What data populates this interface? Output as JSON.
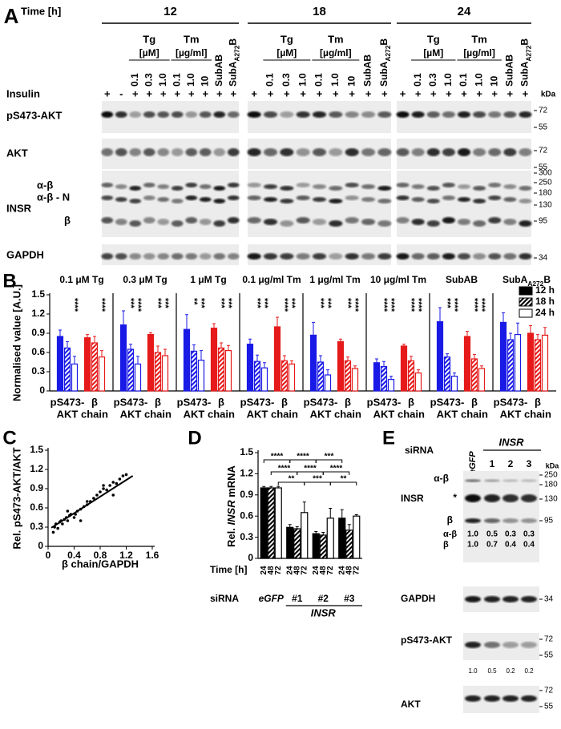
{
  "panel_a": {
    "label": "A",
    "time_label": "Time [h]",
    "insulin_label": "Insulin",
    "kda": "kDa",
    "tg_label": "Tg",
    "tg_unit": "[µM]",
    "tm_label": "Tm",
    "tm_unit": "[µg/ml]",
    "subab": "SubAB",
    "suba272b": [
      "SubA",
      "A272",
      "B"
    ],
    "blocks": [
      {
        "time": 12,
        "insulin": [
          "+",
          "-",
          "+",
          "+",
          "+",
          "+",
          "+",
          "+",
          "+",
          "+"
        ],
        "conc": [
          "0.1",
          "0.3",
          "1.0",
          "0.1",
          "1.0",
          "10"
        ]
      },
      {
        "time": 18,
        "insulin": [
          "+",
          "+",
          "+",
          "+",
          "+",
          "+",
          "+",
          "+",
          "+"
        ],
        "conc": [
          "0.1",
          "0.3",
          "1.0",
          "0.1",
          "1.0",
          "10"
        ]
      },
      {
        "time": 24,
        "insulin": [
          "+",
          "+",
          "+",
          "+",
          "+",
          "+",
          "+",
          "+",
          "+"
        ],
        "conc": [
          "0.1",
          "0.3",
          "1.0",
          "0.1",
          "1.0",
          "10"
        ]
      }
    ],
    "rows": [
      {
        "name": "pS473-AKT",
        "markers": [
          72,
          55
        ]
      },
      {
        "name": "AKT",
        "markers": [
          72,
          55
        ]
      },
      {
        "name": "INSR",
        "markers": [
          300,
          250,
          180,
          130,
          95
        ],
        "bands": [
          "α-β",
          "α-β - N",
          "β"
        ]
      },
      {
        "name": "GAPDH",
        "markers": [
          34
        ]
      }
    ]
  },
  "chart_data": [
    {
      "type": "bar_panels",
      "label": "B",
      "ylabel": "Normalised value [A.U.]",
      "ylim": [
        0,
        1.5
      ],
      "yticks": [
        0,
        0.3,
        0.6,
        0.9,
        1.2,
        1.5
      ],
      "legend_position": "upper right",
      "series": [
        {
          "name": "12 h",
          "style": "solid"
        },
        {
          "name": "18 h",
          "style": "hatched"
        },
        {
          "name": "24 h",
          "style": "open"
        }
      ],
      "groups": [
        {
          "label": [
            "pS473-",
            "AKT"
          ],
          "color": "#1a1ae6"
        },
        {
          "label": [
            "β",
            "chain"
          ],
          "color": "#e61a1a"
        }
      ],
      "panels": [
        {
          "title": "0.1 μM Tg",
          "values": [
            [
              0.85,
              0.67,
              0.42
            ],
            [
              0.83,
              0.75,
              0.53
            ]
          ],
          "errors": [
            [
              0.1,
              0.1,
              0.12
            ],
            [
              0.05,
              0.1,
              0.1
            ]
          ],
          "stars": [
            [
              null,
              null,
              "****"
            ],
            [
              null,
              null,
              "****"
            ]
          ]
        },
        {
          "title": "0.3 μM Tg",
          "values": [
            [
              1.03,
              0.65,
              0.42
            ],
            [
              0.88,
              0.6,
              0.55
            ]
          ],
          "errors": [
            [
              0.22,
              0.08,
              0.12
            ],
            [
              0.03,
              0.1,
              0.1
            ]
          ],
          "stars": [
            [
              null,
              "***",
              "****"
            ],
            [
              null,
              "***",
              "***"
            ]
          ]
        },
        {
          "title": "1 μM Tg",
          "values": [
            [
              0.96,
              0.62,
              0.48
            ],
            [
              0.98,
              0.67,
              0.63
            ]
          ],
          "errors": [
            [
              0.23,
              0.1,
              0.15
            ],
            [
              0.07,
              0.08,
              0.08
            ]
          ],
          "stars": [
            [
              null,
              "**",
              "***"
            ],
            [
              null,
              "***",
              "***"
            ]
          ]
        },
        {
          "title": "0.1 μg/ml Tm",
          "values": [
            [
              0.73,
              0.46,
              0.36
            ],
            [
              1.0,
              0.47,
              0.42
            ]
          ],
          "errors": [
            [
              0.08,
              0.1,
              0.08
            ],
            [
              0.15,
              0.08,
              0.05
            ]
          ],
          "stars": [
            [
              null,
              "***",
              "***"
            ],
            [
              null,
              "****",
              "***"
            ]
          ]
        },
        {
          "title": "1 μg/ml Tm",
          "values": [
            [
              0.87,
              0.45,
              0.25
            ],
            [
              0.77,
              0.47,
              0.35
            ]
          ],
          "errors": [
            [
              0.2,
              0.1,
              0.08
            ],
            [
              0.04,
              0.06,
              0.04
            ]
          ],
          "stars": [
            [
              null,
              "***",
              "***"
            ],
            [
              null,
              "***",
              "****"
            ]
          ]
        },
        {
          "title": "10 μg/ml Tm",
          "values": [
            [
              0.44,
              0.38,
              0.18
            ],
            [
              0.7,
              0.47,
              0.28
            ]
          ],
          "errors": [
            [
              0.06,
              0.08,
              0.05
            ],
            [
              0.03,
              0.07,
              0.05
            ]
          ],
          "stars": [
            [
              null,
              "****",
              "****"
            ],
            [
              null,
              "****",
              "****"
            ]
          ]
        },
        {
          "title": "SubAB",
          "values": [
            [
              1.08,
              0.53,
              0.23
            ],
            [
              0.85,
              0.5,
              0.35
            ]
          ],
          "errors": [
            [
              0.22,
              0.05,
              0.05
            ],
            [
              0.08,
              0.07,
              0.04
            ]
          ],
          "stars": [
            [
              null,
              "***",
              "****"
            ],
            [
              null,
              "****",
              "****"
            ]
          ]
        },
        {
          "title": [
            "SubA",
            "A272",
            "B"
          ],
          "values": [
            [
              1.07,
              0.8,
              0.88
            ],
            [
              0.9,
              0.8,
              0.87
            ]
          ],
          "errors": [
            [
              0.15,
              0.1,
              0.18
            ],
            [
              0.12,
              0.08,
              0.12
            ]
          ],
          "stars": [
            [
              null,
              null,
              null
            ],
            [
              null,
              null,
              null
            ]
          ]
        }
      ]
    },
    {
      "type": "scatter",
      "label": "C",
      "ylabel": "Rel. pS473-AKT/AKT",
      "xlabel": "β chain/GAPDH",
      "xlim": [
        0,
        1.6
      ],
      "xticks": [
        0,
        0.4,
        0.8,
        1.2,
        1.6
      ],
      "ylim": [
        0,
        1.5
      ],
      "yticks": [
        0,
        0.3,
        0.6,
        0.9,
        1.2,
        1.5
      ],
      "color": "#000",
      "x": [
        0.08,
        0.1,
        0.12,
        0.15,
        0.18,
        0.2,
        0.22,
        0.25,
        0.28,
        0.3,
        0.33,
        0.35,
        0.4,
        0.42,
        0.45,
        0.5,
        0.55,
        0.6,
        0.65,
        0.7,
        0.75,
        0.8,
        0.85,
        0.9,
        0.95,
        1.0,
        1.05,
        1.1,
        1.15,
        1.2,
        0.5,
        0.6,
        0.3,
        0.85,
        1.0
      ],
      "y": [
        0.22,
        0.3,
        0.35,
        0.28,
        0.38,
        0.4,
        0.35,
        0.42,
        0.45,
        0.4,
        0.48,
        0.5,
        0.45,
        0.5,
        0.55,
        0.58,
        0.62,
        0.65,
        0.7,
        0.75,
        0.8,
        0.85,
        0.9,
        0.88,
        0.95,
        1.0,
        0.98,
        1.05,
        1.1,
        1.12,
        0.4,
        0.7,
        0.55,
        0.95,
        0.8
      ],
      "fit": {
        "x": [
          0.05,
          1.3
        ],
        "y": [
          0.29,
          1.1
        ]
      }
    },
    {
      "type": "bar",
      "label": "D",
      "ylabel": [
        "Rel. ",
        "INSR",
        " mRNA"
      ],
      "ylim": [
        0,
        1.5
      ],
      "yticks": [
        0,
        0.3,
        0.6,
        0.9,
        1.2,
        1.5
      ],
      "categories": [
        "eGFP",
        "#1",
        "#2",
        "#3"
      ],
      "group_label": "INSR",
      "time_label": "Time [h]",
      "sirna_label": "siRNA",
      "series": [
        {
          "name": "24",
          "style": "solid",
          "color": "#000",
          "values": [
            1.0,
            0.44,
            0.35,
            0.57
          ],
          "errors": [
            0.02,
            0.04,
            0.03,
            0.12
          ]
        },
        {
          "name": "48",
          "style": "hatched",
          "color": "#000",
          "values": [
            1.0,
            0.42,
            0.33,
            0.4
          ],
          "errors": [
            0.02,
            0.03,
            0.04,
            0.08
          ]
        },
        {
          "name": "72",
          "style": "open",
          "color": "#000",
          "values": [
            1.0,
            0.65,
            0.57,
            0.6
          ],
          "errors": [
            0.02,
            0.15,
            0.14,
            0.02
          ]
        }
      ],
      "significance": [
        "****",
        "****",
        "***",
        "****",
        "****",
        "****",
        "**",
        "***",
        "**"
      ]
    }
  ],
  "panel_e": {
    "label": "E",
    "sirna_label": "siRNA",
    "lanes": [
      "eGFP",
      "1",
      "2",
      "3"
    ],
    "target": "INSR",
    "kda": "kDa",
    "insr": {
      "name": "INSR",
      "markers": [
        250,
        180,
        130,
        95
      ],
      "bands": [
        "α-β",
        "*",
        "β"
      ],
      "quant": [
        {
          "name": "α-β",
          "values": [
            "1.0",
            "0.5",
            "0.3",
            "0.3"
          ]
        },
        {
          "name": "β",
          "values": [
            "1.0",
            "0.7",
            "0.4",
            "0.4"
          ]
        }
      ]
    },
    "gapdh": {
      "name": "GAPDH",
      "markers": [
        34
      ]
    },
    "pakt": {
      "name": "pS473-AKT",
      "markers": [
        72,
        55
      ],
      "quant": [
        "1.0",
        "0.5",
        "0.2",
        "0.2"
      ]
    },
    "akt": {
      "name": "AKT",
      "markers": [
        72,
        55
      ]
    }
  }
}
